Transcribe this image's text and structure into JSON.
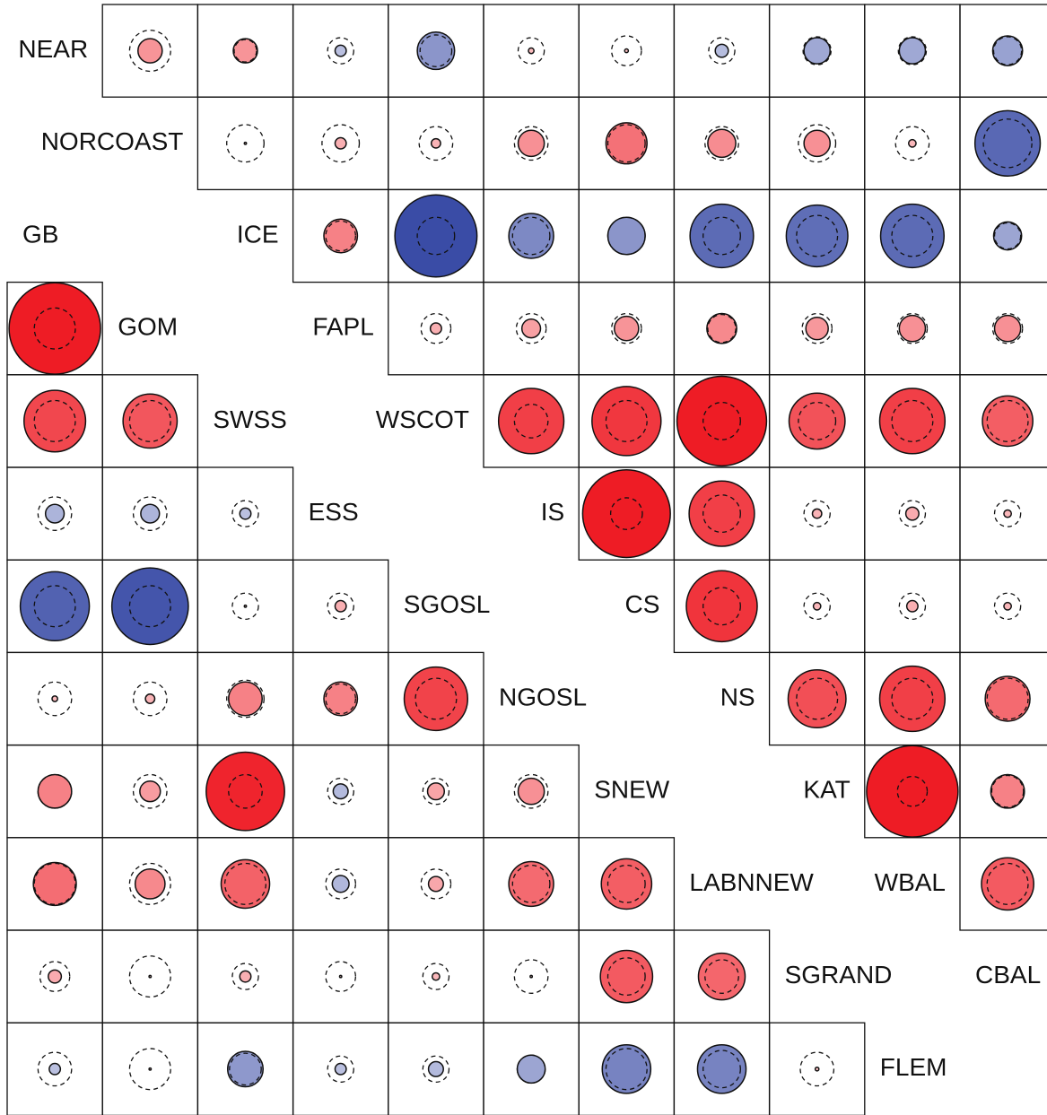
{
  "chart_data": {
    "type": "correlation-matrix",
    "positive_color": "#ee1c25",
    "negative_color": "#3a4ca6",
    "upper": {
      "labels": [
        "NEAR",
        "NORCOAST",
        "ICE",
        "FAPL",
        "WSCOT",
        "IS",
        "CS",
        "NS",
        "KAT",
        "WBAL",
        "CBAL"
      ],
      "rows": [
        {
          "values": [
            0.26,
            0.26,
            -0.12,
            -0.4,
            0.06,
            0.04,
            -0.14,
            -0.28,
            -0.28,
            -0.32
          ],
          "thresholds": [
            0.44,
            0.24,
            0.28,
            0.34,
            0.28,
            0.32,
            0.28,
            0.3,
            0.3,
            0.3
          ]
        },
        {
          "values": [
            0.02,
            0.12,
            0.1,
            0.28,
            0.44,
            0.3,
            0.28,
            0.08,
            -0.7
          ],
          "thresholds": [
            0.4,
            0.4,
            0.36,
            0.36,
            0.4,
            0.36,
            0.4,
            0.36,
            0.52
          ]
        },
        {
          "values": [
            0.36,
            -0.88,
            -0.48,
            -0.4,
            -0.68,
            -0.66,
            -0.68,
            -0.3
          ],
          "thresholds": [
            0.32,
            0.4,
            0.4,
            0.4,
            0.4,
            0.44,
            0.44,
            0.28
          ]
        },
        {
          "values": [
            0.12,
            0.2,
            0.26,
            0.32,
            0.24,
            0.28,
            0.28
          ],
          "thresholds": [
            0.32,
            0.32,
            0.32,
            0.3,
            0.32,
            0.32,
            0.32
          ]
        },
        {
          "values": [
            0.7,
            0.74,
            0.96,
            0.6,
            0.7,
            0.54
          ],
          "thresholds": [
            0.36,
            0.44,
            0.4,
            0.4,
            0.44,
            0.44
          ]
        },
        {
          "values": [
            0.94,
            0.7,
            0.1,
            0.14,
            0.08
          ],
          "thresholds": [
            0.34,
            0.4,
            0.28,
            0.28,
            0.28
          ]
        },
        {
          "values": [
            0.76,
            0.08,
            0.12,
            0.08
          ],
          "thresholds": [
            0.4,
            0.28,
            0.28,
            0.28
          ]
        },
        {
          "values": [
            0.62,
            0.7,
            0.48
          ],
          "thresholds": [
            0.44,
            0.44,
            0.44
          ]
        },
        {
          "values": [
            0.98,
            0.36
          ],
          "thresholds": [
            0.32,
            0.34
          ]
        },
        {
          "values": [
            0.56
          ],
          "thresholds": [
            0.44
          ]
        }
      ]
    },
    "lower": {
      "labels": [
        "GB",
        "GOM",
        "SWSS",
        "ESS",
        "SGOSL",
        "NGOSL",
        "SNEW",
        "LABNNEW",
        "SGRAND",
        "FLEM"
      ],
      "rows": [
        {
          "values": [
            0.98
          ],
          "thresholds": [
            0.44
          ]
        },
        {
          "values": [
            0.66,
            0.58
          ],
          "thresholds": [
            0.44,
            0.44
          ]
        },
        {
          "values": [
            -0.2,
            -0.2,
            -0.12
          ],
          "thresholds": [
            0.36,
            0.36,
            0.28
          ]
        },
        {
          "values": [
            -0.74,
            -0.82,
            0.02,
            0.12
          ],
          "thresholds": [
            0.44,
            0.44,
            0.28,
            0.28
          ]
        },
        {
          "values": [
            0.06,
            0.1,
            0.36,
            0.36,
            0.68
          ],
          "thresholds": [
            0.36,
            0.36,
            0.4,
            0.32,
            0.44
          ]
        },
        {
          "values": [
            0.36,
            0.22,
            0.84,
            -0.16,
            0.18,
            0.28
          ],
          "thresholds": [
            0.36,
            0.36,
            0.36,
            0.28,
            0.28,
            0.36
          ]
        },
        {
          "values": [
            0.46,
            0.32,
            0.52,
            -0.18,
            0.16,
            0.48,
            0.54
          ],
          "thresholds": [
            0.44,
            0.44,
            0.44,
            0.32,
            0.32,
            0.4,
            0.4
          ]
        },
        {
          "values": [
            0.14,
            0.02,
            0.12,
            0.02,
            0.08,
            0.02,
            0.56,
            0.5
          ],
          "thresholds": [
            0.32,
            0.44,
            0.28,
            0.32,
            0.28,
            0.36,
            0.4,
            0.36
          ]
        },
        {
          "values": [
            -0.12,
            0.02,
            -0.38,
            -0.12,
            -0.16,
            -0.3,
            -0.52,
            -0.52,
            0.04
          ],
          "thresholds": [
            0.36,
            0.44,
            0.34,
            0.28,
            0.28,
            0.3,
            0.44,
            0.4,
            0.36
          ]
        }
      ]
    }
  }
}
